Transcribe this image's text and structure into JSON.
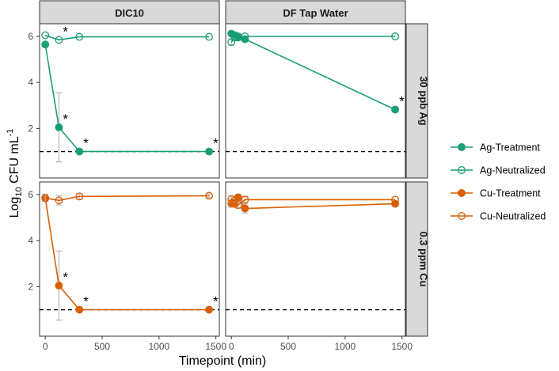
{
  "chart_data": {
    "type": "line",
    "title": "",
    "xlabel": "Timepoint (min)",
    "ylabel": "Log10 CFU mL-1",
    "xlim": [
      -50,
      1530
    ],
    "ylim": [
      -0.15,
      6.55
    ],
    "x_ticks": [
      "0",
      "500",
      "1000",
      "1500"
    ],
    "y_ticks": [
      "2",
      "4",
      "6"
    ],
    "detection_limit": 1.0,
    "column_strips": [
      "DIC10",
      "DF Tap Water"
    ],
    "row_strips": [
      "30 ppb Ag",
      "0.3 ppm Cu"
    ],
    "legend": {
      "position": "right",
      "entries": [
        "Ag-Treatment",
        "Ag-Neutralized",
        "Cu-Treatment",
        "Cu-Neutralized"
      ]
    },
    "colors": {
      "Ag": "#1b9e77",
      "Cu": "#d95f02",
      "errorbar": "#bdbdbd",
      "strip_bg": "#d9d9d9"
    },
    "panels": [
      {
        "col": 0,
        "row": 0,
        "series": [
          {
            "name": "Ag-Treatment",
            "metal": "Ag",
            "fill": true,
            "points": [
              {
                "x": 0,
                "y": 5.65
              },
              {
                "x": 120,
                "y": 2.05,
                "ymin": 0.55,
                "ymax": 3.55,
                "star": true
              },
              {
                "x": 300,
                "y": 1.0,
                "star": true
              },
              {
                "x": 1440,
                "y": 1.0,
                "star": true
              }
            ]
          },
          {
            "name": "Ag-Neutralized",
            "metal": "Ag",
            "fill": false,
            "points": [
              {
                "x": 0,
                "y": 6.05
              },
              {
                "x": 120,
                "y": 5.85,
                "star": true
              },
              {
                "x": 300,
                "y": 5.98
              },
              {
                "x": 1440,
                "y": 5.98
              }
            ]
          }
        ]
      },
      {
        "col": 1,
        "row": 0,
        "series": [
          {
            "name": "Ag-Treatment",
            "metal": "Ag",
            "fill": true,
            "points": [
              {
                "x": 0,
                "y": 6.12
              },
              {
                "x": 30,
                "y": 6.05
              },
              {
                "x": 60,
                "y": 5.95
              },
              {
                "x": 120,
                "y": 5.88
              },
              {
                "x": 1440,
                "y": 2.82,
                "star": true
              }
            ]
          },
          {
            "name": "Ag-Neutralized",
            "metal": "Ag",
            "fill": false,
            "points": [
              {
                "x": 0,
                "y": 5.75,
                "ymin": 5.62,
                "ymax": 5.9
              },
              {
                "x": 30,
                "y": 5.95
              },
              {
                "x": 60,
                "y": 6.0
              },
              {
                "x": 120,
                "y": 6.0
              },
              {
                "x": 1440,
                "y": 6.0
              }
            ]
          }
        ]
      },
      {
        "col": 0,
        "row": 1,
        "series": [
          {
            "name": "Cu-Treatment",
            "metal": "Cu",
            "fill": true,
            "points": [
              {
                "x": 0,
                "y": 5.85
              },
              {
                "x": 120,
                "y": 2.05,
                "ymin": 0.55,
                "ymax": 3.55,
                "star": true
              },
              {
                "x": 300,
                "y": 1.0,
                "star": true
              },
              {
                "x": 1440,
                "y": 1.0,
                "star": true
              }
            ]
          },
          {
            "name": "Cu-Neutralized",
            "metal": "Cu",
            "fill": false,
            "points": [
              {
                "x": 0,
                "y": 5.85,
                "ymin": 5.7,
                "ymax": 6.02
              },
              {
                "x": 120,
                "y": 5.75,
                "ymin": 5.55,
                "ymax": 5.95
              },
              {
                "x": 300,
                "y": 5.92,
                "ymin": 5.8,
                "ymax": 6.05
              },
              {
                "x": 1440,
                "y": 5.95,
                "ymin": 5.87,
                "ymax": 6.03
              }
            ]
          }
        ]
      },
      {
        "col": 1,
        "row": 1,
        "series": [
          {
            "name": "Cu-Treatment",
            "metal": "Cu",
            "fill": true,
            "points": [
              {
                "x": 0,
                "y": 5.62,
                "ymin": 5.45,
                "ymax": 5.8
              },
              {
                "x": 30,
                "y": 5.6
              },
              {
                "x": 60,
                "y": 5.88,
                "ymin": 5.75,
                "ymax": 6.0
              },
              {
                "x": 120,
                "y": 5.4,
                "ymin": 5.2,
                "ymax": 5.6
              },
              {
                "x": 1440,
                "y": 5.6
              }
            ]
          },
          {
            "name": "Cu-Neutralized",
            "metal": "Cu",
            "fill": false,
            "points": [
              {
                "x": 0,
                "y": 5.8,
                "ymin": 5.65,
                "ymax": 5.95
              },
              {
                "x": 30,
                "y": 5.75
              },
              {
                "x": 60,
                "y": 5.55,
                "ymin": 5.4,
                "ymax": 5.7
              },
              {
                "x": 120,
                "y": 5.78,
                "ymin": 5.62,
                "ymax": 5.92
              },
              {
                "x": 1440,
                "y": 5.78
              }
            ]
          }
        ]
      }
    ]
  }
}
